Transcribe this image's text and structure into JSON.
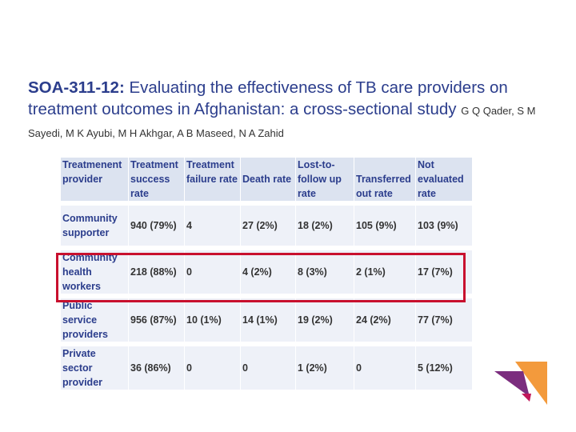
{
  "title": {
    "code": "SOA-311-12:",
    "text": "Evaluating the effectiveness of TB care providers on treatment outcomes in Afghanistan: a cross-sectional study",
    "authors": "G Q Qader, S M Sayedi, M K Ayubi, M H Akhgar, A B Maseed, N A Zahid"
  },
  "table": {
    "headers": [
      "Treatmenent provider",
      "Treatment success rate",
      "Treatment failure rate",
      "Death rate",
      "Lost-to-follow up rate",
      "Transferred out rate",
      "Not evaluated rate"
    ],
    "rows": [
      {
        "provider": "Community supporter",
        "values": [
          "940 (79%)",
          "4",
          "27 (2%)",
          "18 (2%)",
          "105 (9%)",
          "103 (9%)"
        ]
      },
      {
        "provider": "Community health workers",
        "values": [
          "218 (88%)",
          "0",
          "4 (2%)",
          "8 (3%)",
          "2 (1%)",
          "17 (7%)"
        ],
        "highlighted": true
      },
      {
        "provider": "Public service providers",
        "values": [
          "956 (87%)",
          "10 (1%)",
          "14 (1%)",
          "19 (2%)",
          "24 (2%)",
          "77 (7%)"
        ]
      },
      {
        "provider": "Private sector provider",
        "values": [
          "36 (86%)",
          "0",
          "0",
          "1 (2%)",
          "0",
          "5 (12%)"
        ]
      }
    ]
  },
  "colors": {
    "title": "#2b3d8c",
    "highlight": "#c8102e",
    "logo_orange": "#f39a3c",
    "logo_purple": "#7b2d7e",
    "logo_magenta": "#c2185b"
  }
}
